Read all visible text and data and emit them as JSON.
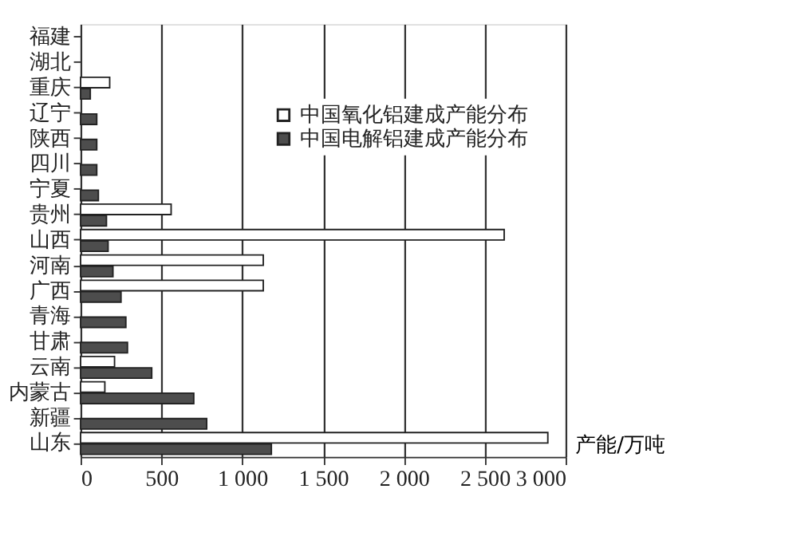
{
  "chart_data": {
    "type": "bar",
    "orientation": "horizontal",
    "xlabel": "产能/万吨",
    "categories": [
      "福建",
      "湖北",
      "重庆",
      "辽宁",
      "陕西",
      "四川",
      "宁夏",
      "贵州",
      "山西",
      "河南",
      "广西",
      "青海",
      "甘肃",
      "云南",
      "内蒙古",
      "新疆",
      "山东"
    ],
    "series": [
      {
        "name": "中国氧化铝建成产能分布",
        "color": "#ffffff",
        "values": [
          null,
          null,
          180,
          null,
          null,
          null,
          null,
          560,
          2620,
          1130,
          1130,
          null,
          null,
          210,
          150,
          null,
          2890
        ]
      },
      {
        "name": "中国电解铝建成产能分布",
        "color": "#4d4d4d",
        "values": [
          null,
          null,
          60,
          100,
          100,
          100,
          110,
          160,
          170,
          200,
          250,
          280,
          290,
          440,
          700,
          780,
          1180
        ]
      }
    ],
    "xlim": [
      0,
      3000
    ],
    "xticks": [
      0,
      500,
      {
        "value": 1000,
        "label": "1 000"
      },
      {
        "value": 1500,
        "label": "1 500"
      },
      {
        "value": 2000,
        "label": "2 000"
      },
      {
        "value": 2500,
        "label": "2 500"
      },
      {
        "value": 3000,
        "label": "3 000"
      }
    ],
    "grid": "x",
    "legend": "top right"
  }
}
